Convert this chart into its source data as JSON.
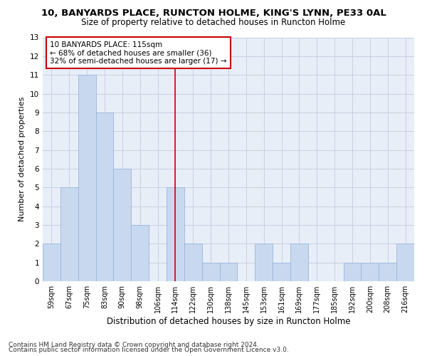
{
  "title_line1": "10, BANYARDS PLACE, RUNCTON HOLME, KING'S LYNN, PE33 0AL",
  "title_line2": "Size of property relative to detached houses in Runcton Holme",
  "xlabel": "Distribution of detached houses by size in Runcton Holme",
  "ylabel": "Number of detached properties",
  "categories": [
    "59sqm",
    "67sqm",
    "75sqm",
    "83sqm",
    "90sqm",
    "98sqm",
    "106sqm",
    "114sqm",
    "122sqm",
    "130sqm",
    "138sqm",
    "145sqm",
    "153sqm",
    "161sqm",
    "169sqm",
    "177sqm",
    "185sqm",
    "192sqm",
    "200sqm",
    "208sqm",
    "216sqm"
  ],
  "values": [
    2,
    5,
    11,
    9,
    6,
    3,
    0,
    5,
    2,
    1,
    1,
    0,
    2,
    1,
    2,
    0,
    0,
    1,
    1,
    1,
    2
  ],
  "bar_color": "#c8d9ef",
  "bar_edge_color": "#9ab5d9",
  "highlight_index": 7,
  "highlight_color_line": "#cc0000",
  "annotation_line1": "10 BANYARDS PLACE: 115sqm",
  "annotation_line2": "← 68% of detached houses are smaller (36)",
  "annotation_line3": "32% of semi-detached houses are larger (17) →",
  "annotation_box_color": "#ffffff",
  "annotation_box_edge_color": "#cc0000",
  "ylim": [
    0,
    13
  ],
  "yticks": [
    0,
    1,
    2,
    3,
    4,
    5,
    6,
    7,
    8,
    9,
    10,
    11,
    12,
    13
  ],
  "grid_color": "#c8cfe0",
  "bg_color": "#e8eef8",
  "footnote1": "Contains HM Land Registry data © Crown copyright and database right 2024.",
  "footnote2": "Contains public sector information licensed under the Open Government Licence v3.0.",
  "title_fontsize": 9.5,
  "subtitle_fontsize": 8.5,
  "ylabel_fontsize": 8,
  "xlabel_fontsize": 8.5,
  "tick_fontsize": 7,
  "annotation_fontsize": 7.5,
  "footnote_fontsize": 6.5
}
